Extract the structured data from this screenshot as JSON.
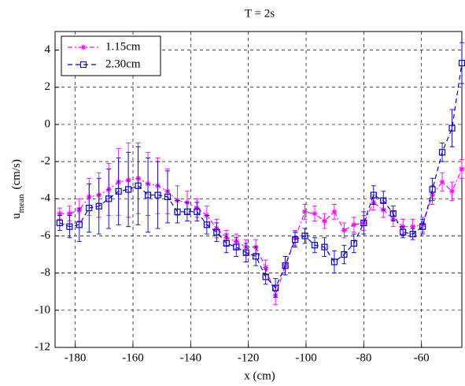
{
  "chart_data": {
    "type": "line",
    "title": "T = 2s",
    "xlabel": "x (cm)",
    "ylabel": {
      "main": "u",
      "sub": "mean",
      "unit": "(cm/s)"
    },
    "x": [
      -185.4,
      -182.0,
      -178.6,
      -175.2,
      -171.8,
      -168.4,
      -165.0,
      -161.6,
      -158.2,
      -154.8,
      -151.4,
      -148.0,
      -144.6,
      -141.2,
      -137.8,
      -134.4,
      -131.0,
      -127.6,
      -124.2,
      -120.8,
      -117.4,
      -114.0,
      -110.6,
      -107.2,
      -103.8,
      -100.4,
      -97.0,
      -93.6,
      -90.2,
      -86.8,
      -83.4,
      -80.0,
      -76.6,
      -73.2,
      -69.8,
      -66.4,
      -63.0,
      -59.6,
      -56.2,
      -52.8,
      -49.4,
      -46.0
    ],
    "series": [
      {
        "name": "1.15cm",
        "color": "#ff00ff",
        "marker": "star",
        "dash": "6 3 2 3",
        "values": [
          -4.8,
          -4.8,
          -4.6,
          -3.9,
          -3.8,
          -3.5,
          -3.1,
          -3.0,
          -2.9,
          -3.2,
          -3.3,
          -3.6,
          -4.1,
          -4.2,
          -4.5,
          -4.9,
          -5.6,
          -6.1,
          -6.3,
          -6.6,
          -6.6,
          -7.7,
          -9.2,
          -7.6,
          -6.1,
          -4.7,
          -4.8,
          -5.2,
          -4.7,
          -5.7,
          -5.4,
          -5.3,
          -4.2,
          -4.6,
          -5.1,
          -5.5,
          -5.5,
          -5.4,
          -3.8,
          -3.1,
          -3.6,
          -2.4
        ],
        "errors": [
          0.3,
          0.4,
          0.6,
          1.0,
          1.2,
          1.4,
          1.8,
          2.0,
          1.9,
          1.7,
          1.5,
          1.2,
          0.8,
          0.6,
          0.5,
          0.5,
          0.5,
          0.4,
          0.4,
          0.4,
          0.4,
          0.4,
          0.5,
          0.5,
          0.4,
          0.4,
          0.4,
          0.4,
          0.4,
          0.4,
          0.4,
          0.4,
          0.4,
          0.4,
          0.4,
          0.4,
          0.4,
          0.4,
          0.5,
          0.5,
          0.5,
          0.5
        ]
      },
      {
        "name": "2.30cm",
        "color": "#0000cc",
        "marker": "square",
        "dash": "6 4",
        "values": [
          -5.3,
          -5.5,
          -5.4,
          -4.5,
          -4.4,
          -4.0,
          -3.6,
          -3.5,
          -3.3,
          -3.8,
          -3.8,
          -3.9,
          -4.7,
          -4.7,
          -4.7,
          -5.4,
          -5.8,
          -6.4,
          -6.6,
          -6.9,
          -7.1,
          -8.2,
          -8.8,
          -7.6,
          -6.2,
          -6.0,
          -6.5,
          -6.6,
          -7.4,
          -7.0,
          -6.4,
          -5.3,
          -3.8,
          -4.1,
          -4.8,
          -5.8,
          -5.9,
          -5.5,
          -3.5,
          -1.5,
          -0.2,
          3.3
        ],
        "errors": [
          0.4,
          0.6,
          0.9,
          1.3,
          1.5,
          1.6,
          1.8,
          2.0,
          2.1,
          2.0,
          1.8,
          1.4,
          0.6,
          0.5,
          0.5,
          0.5,
          0.5,
          0.5,
          0.5,
          0.5,
          0.5,
          0.4,
          0.5,
          0.5,
          0.4,
          0.4,
          0.4,
          0.5,
          0.6,
          0.5,
          0.5,
          0.6,
          0.5,
          0.5,
          0.4,
          0.3,
          0.3,
          0.4,
          0.6,
          0.5,
          1.0,
          1.1
        ]
      }
    ],
    "xlim": [
      -187,
      -46
    ],
    "ylim": [
      -12,
      5
    ],
    "xticks": [
      -180,
      -160,
      -140,
      -120,
      -100,
      -80,
      -60
    ],
    "yticks": [
      -12,
      -10,
      -8,
      -6,
      -4,
      -2,
      0,
      2,
      4
    ],
    "grid": true,
    "legend": "upper-left"
  }
}
